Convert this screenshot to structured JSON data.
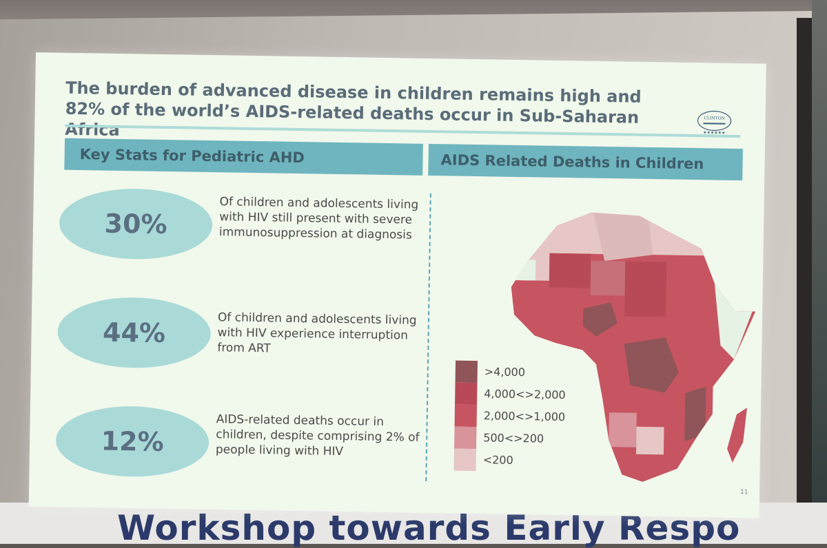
{
  "slide": {
    "title": "The burden of advanced disease in children remains high and 82% of the world’s AIDS-related deaths occur in Sub-Saharan Africa",
    "logo_text": "CLINTON",
    "left_header": "Key Stats for Pediatric AHD",
    "right_header": "AIDS Related Deaths in Children",
    "page_number": "11",
    "stats": [
      {
        "value": "30%",
        "text": "Of children and adolescents living with HIV still present with severe immunosuppression at diagnosis"
      },
      {
        "value": "44%",
        "text": "Of children and adolescents living with HIV experience interruption from ART"
      },
      {
        "value": "12%",
        "text": "AIDS-related deaths occur in children, despite comprising 2% of people living with HIV"
      }
    ],
    "legend": [
      {
        "label": ">4,000",
        "color": "#8f5558"
      },
      {
        "label": "4,000<>2,000",
        "color": "#b84a57"
      },
      {
        "label": "2,000<>1,000",
        "color": "#c65561"
      },
      {
        "label": "500<>200",
        "color": "#d8939b"
      },
      {
        "label": "<200",
        "color": "#e6c7c5"
      }
    ]
  },
  "banner": {
    "text": "Workshop towards Early Respo"
  }
}
